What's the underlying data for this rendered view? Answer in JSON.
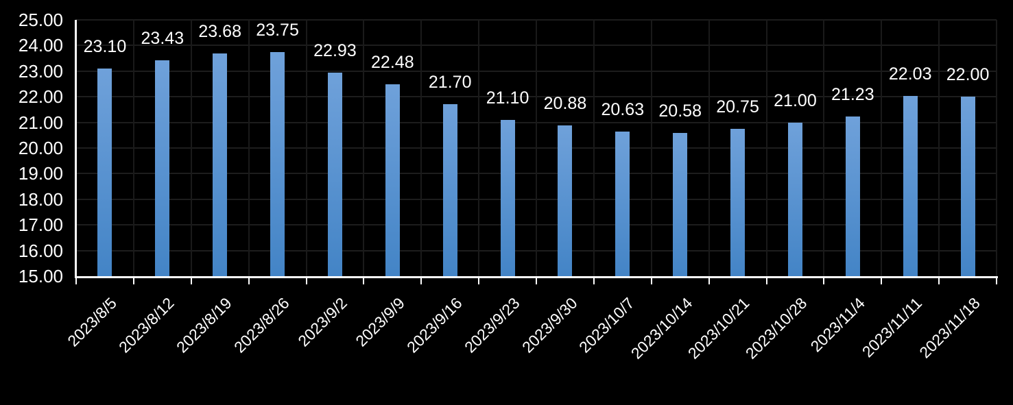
{
  "chart_data": {
    "type": "bar",
    "title": "",
    "xlabel": "",
    "ylabel": "",
    "categories": [
      "2023/8/5",
      "2023/8/12",
      "2023/8/19",
      "2023/8/26",
      "2023/9/2",
      "2023/9/9",
      "2023/9/16",
      "2023/9/23",
      "2023/9/30",
      "2023/10/7",
      "2023/10/14",
      "2023/10/21",
      "2023/10/28",
      "2023/11/4",
      "2023/11/11",
      "2023/11/18"
    ],
    "values": [
      23.1,
      23.43,
      23.68,
      23.75,
      22.93,
      22.48,
      21.7,
      21.1,
      20.88,
      20.63,
      20.58,
      20.75,
      21.0,
      21.23,
      22.03,
      22.0
    ],
    "value_labels": [
      "23.10",
      "23.43",
      "23.68",
      "23.75",
      "22.93",
      "22.48",
      "21.70",
      "21.10",
      "20.88",
      "20.63",
      "20.58",
      "20.75",
      "21.00",
      "21.23",
      "22.03",
      "22.00"
    ],
    "ylim": [
      15,
      25
    ],
    "ytick_step": 1,
    "ytick_labels_top_down": [
      "25.00",
      "24.00",
      "23.00",
      "22.00",
      "21.00",
      "20.00",
      "19.00",
      "18.00",
      "17.00",
      "16.00",
      "15.00"
    ],
    "grid": true,
    "legend_position": "none",
    "x_label_rotation_deg": -45,
    "colors": {
      "background": "#000000",
      "bar_gradient_top": "#6fa1da",
      "bar_gradient_bottom": "#4384c6",
      "gridline": "#1d1d1d",
      "axis": "#ffffff",
      "text": "#ffffff"
    }
  }
}
